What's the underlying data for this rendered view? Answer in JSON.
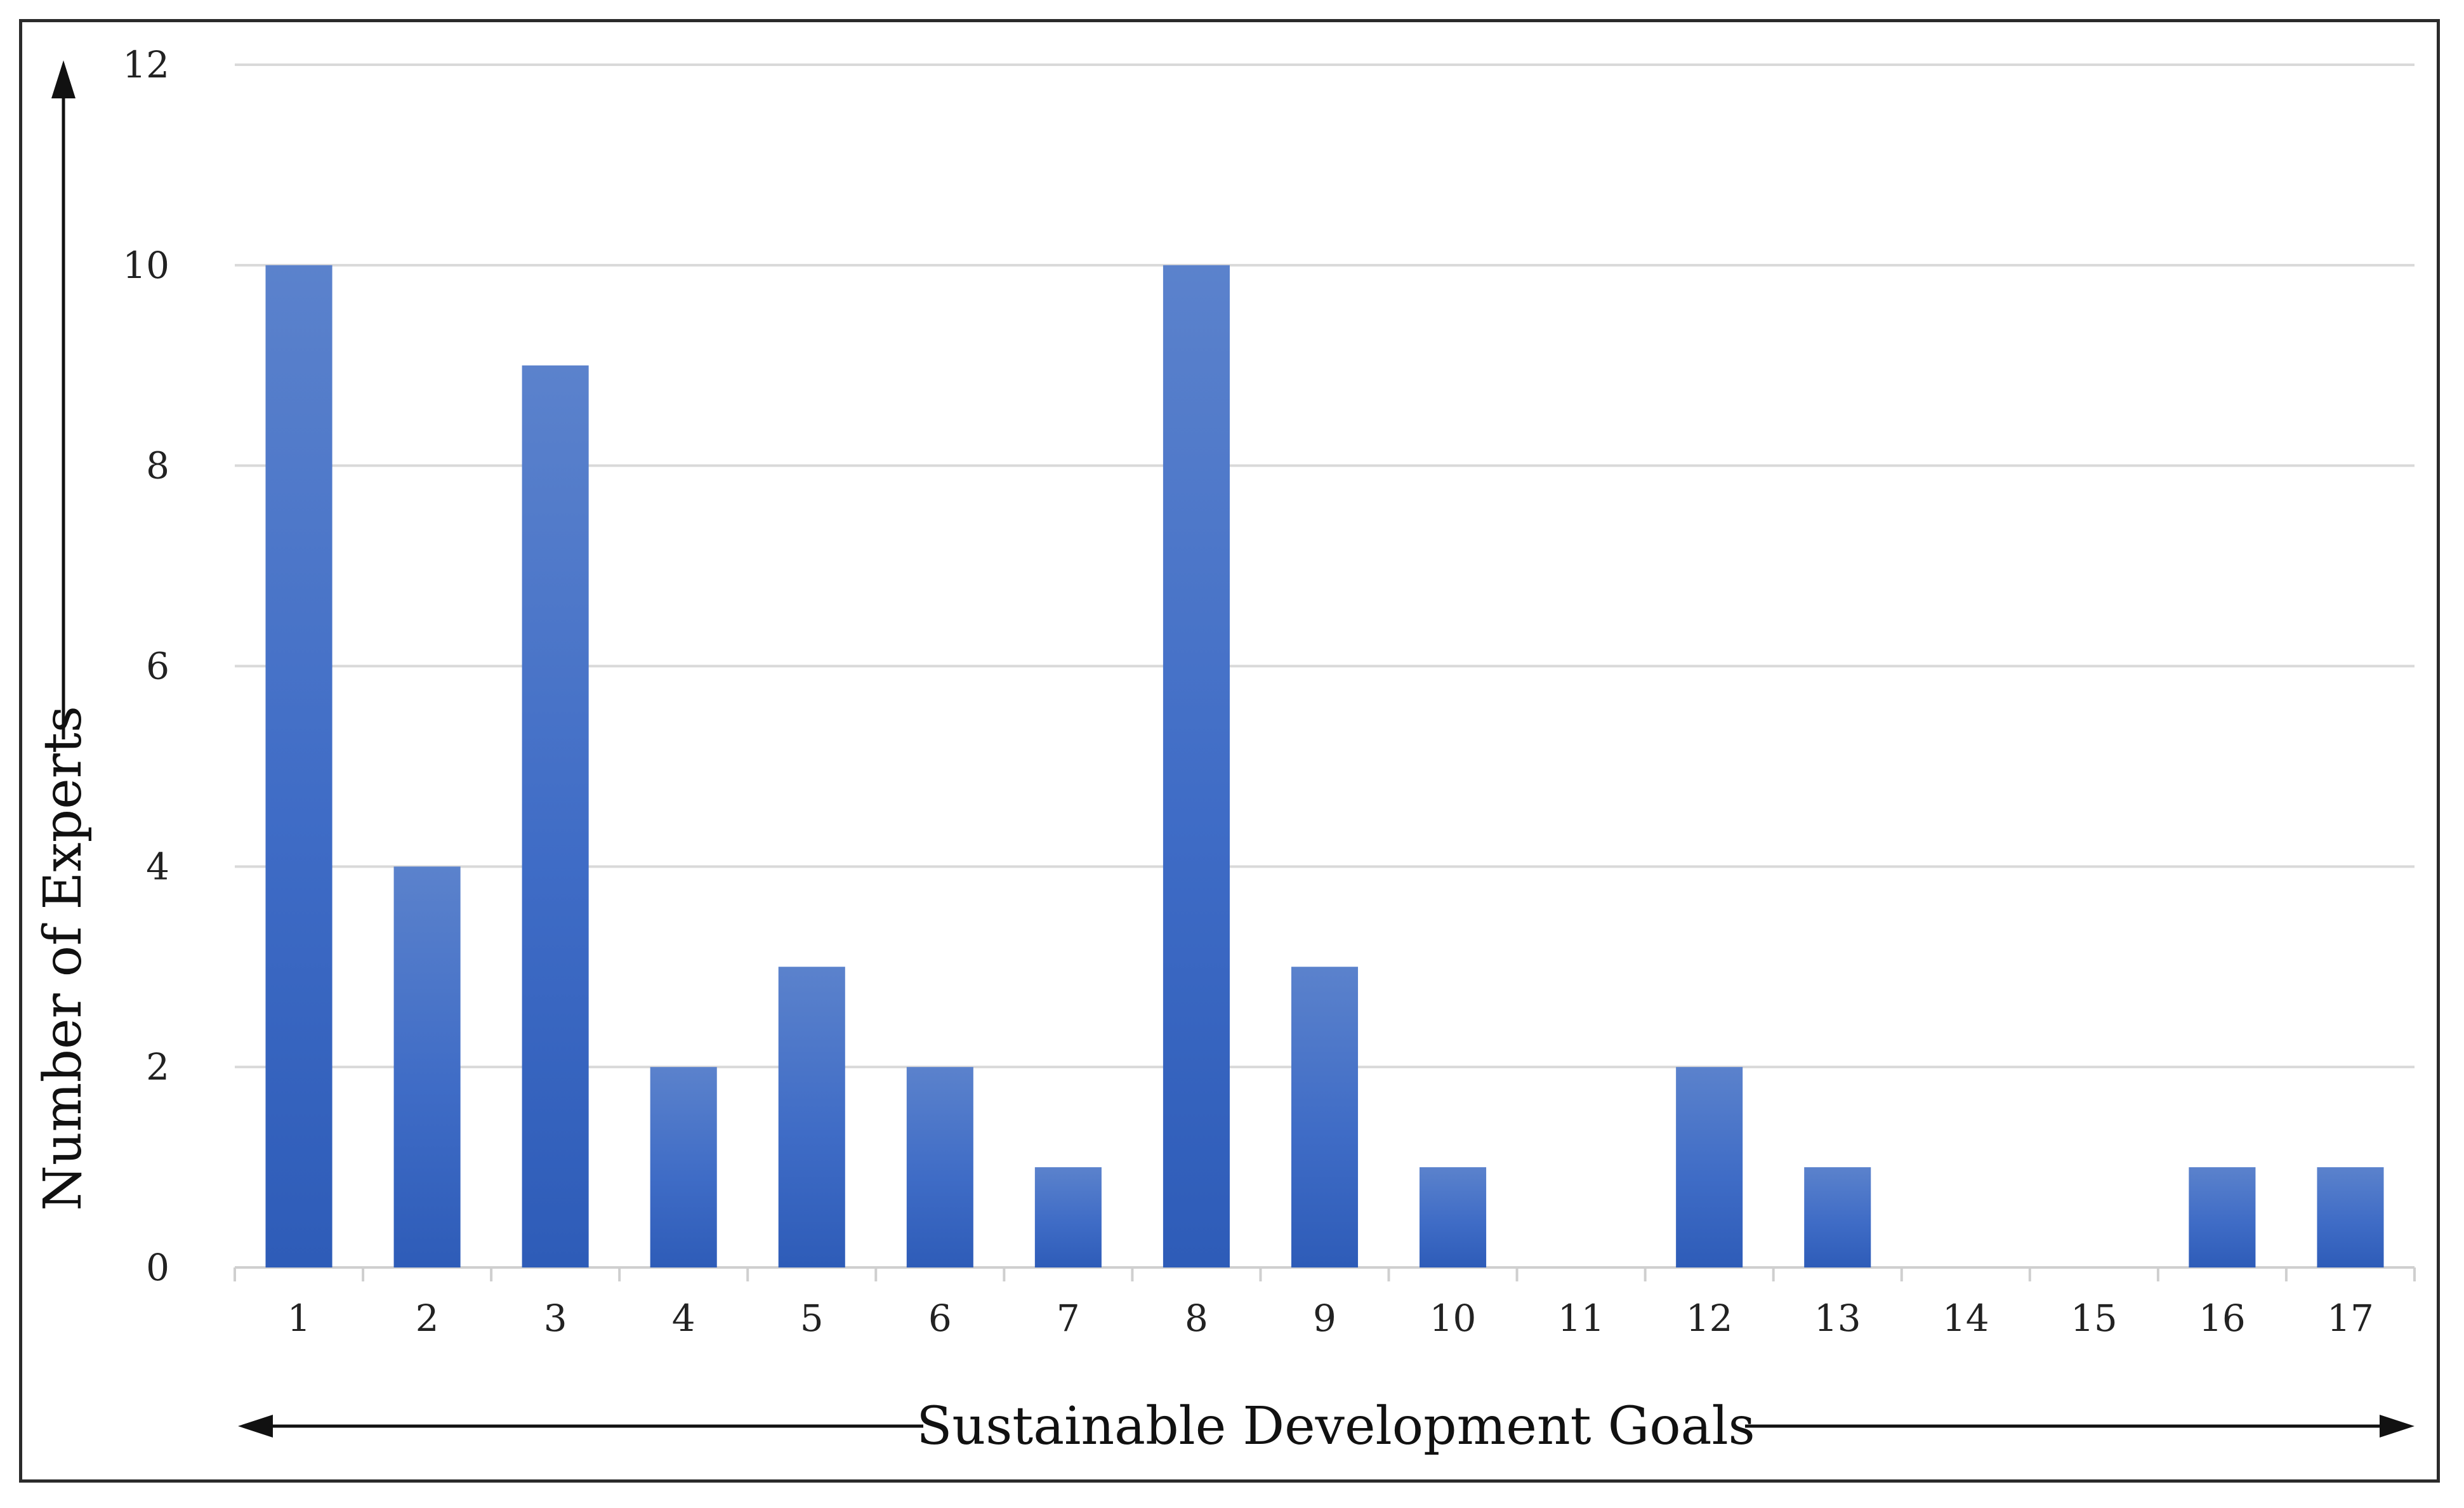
{
  "chart_data": {
    "type": "bar",
    "title": "",
    "xlabel": "Sustainable Development Goals",
    "ylabel": "Number of Experts",
    "categories": [
      "1",
      "2",
      "3",
      "4",
      "5",
      "6",
      "7",
      "8",
      "9",
      "10",
      "11",
      "12",
      "13",
      "14",
      "15",
      "16",
      "17"
    ],
    "values": [
      10,
      4,
      9,
      2,
      3,
      2,
      1,
      10,
      3,
      1,
      0,
      2,
      1,
      0,
      0,
      1,
      1
    ],
    "ylim": [
      0,
      12
    ],
    "yticks": [
      "0",
      "2",
      "4",
      "6",
      "8",
      "10",
      "12"
    ],
    "grid": true,
    "legend": "none",
    "colors": {
      "bar_top": "#5b82cc",
      "bar_mid": "#3f6cc6",
      "bar_bottom": "#2e5cb8"
    }
  }
}
